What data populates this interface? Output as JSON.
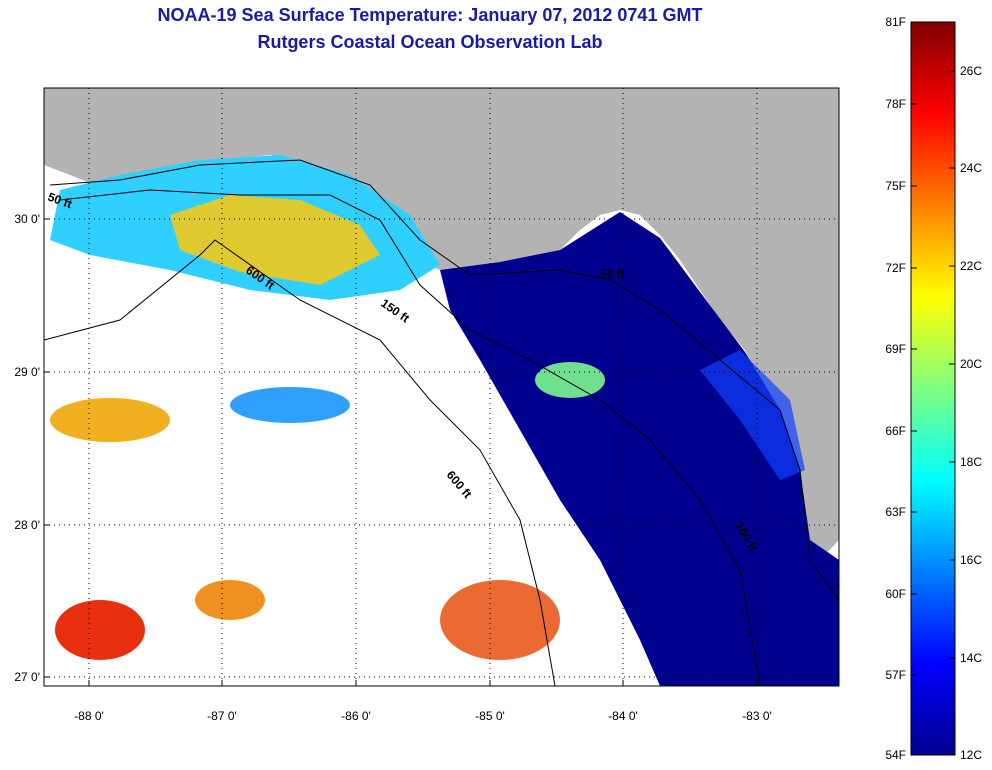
{
  "title": {
    "line1": "NOAA-19 Sea Surface Temperature:  January 07, 2012 0741 GMT",
    "line2": "Rutgers Coastal Ocean Observation Lab"
  },
  "map": {
    "lon_ticks": [
      "-88 0'",
      "-87 0'",
      "-86 0'",
      "-85 0'",
      "-84 0'",
      "-83 0'"
    ],
    "lat_ticks": [
      "30 0'",
      "29 0'",
      "28 0'",
      "27 0'"
    ],
    "contour_labels": [
      "50 ft",
      "600 ft",
      "150 ft",
      "600 ft",
      "50 ft",
      "150 ft"
    ],
    "colors": {
      "land": "#b3b3b3",
      "no_data": "#ffffff",
      "cold": "#00008f",
      "warm": "#ff0000"
    }
  },
  "colorbar": {
    "fahrenheit": [
      "81F",
      "78F",
      "75F",
      "72F",
      "69F",
      "66F",
      "63F",
      "60F",
      "57F",
      "54F"
    ],
    "celsius": [
      "26C",
      "24C",
      "22C",
      "20C",
      "18C",
      "16C",
      "14C",
      "12C"
    ],
    "range_f": [
      54,
      81
    ],
    "range_c": [
      12,
      27.2
    ]
  }
}
